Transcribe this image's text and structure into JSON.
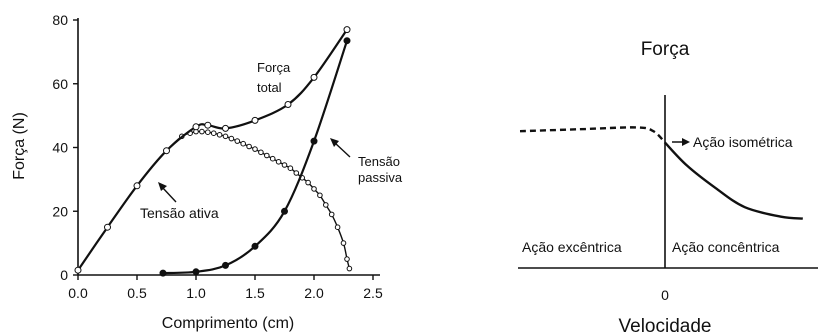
{
  "chart_data": [
    {
      "type": "line",
      "title": "",
      "xlabel": "Comprimento (cm)",
      "ylabel": "Força (N)",
      "xlim": [
        0,
        2.5
      ],
      "ylim": [
        0,
        80
      ],
      "x_ticks": [
        "0.0",
        "0.5",
        "1.0",
        "1.5",
        "2.0",
        "2.5"
      ],
      "y_ticks": [
        "0",
        "20",
        "40",
        "60",
        "80"
      ],
      "grid": false,
      "series": [
        {
          "marker": "open-circle",
          "label_lines": [
            "Tensão ativa"
          ],
          "points": [
            [
              0.0,
              1.5
            ],
            [
              0.25,
              15
            ],
            [
              0.5,
              28
            ],
            [
              0.75,
              39
            ],
            [
              0.88,
              43.5
            ],
            [
              0.95,
              44.5
            ],
            [
              1.0,
              45
            ],
            [
              1.05,
              45
            ],
            [
              1.1,
              44.8
            ],
            [
              1.15,
              44.5
            ],
            [
              1.2,
              44
            ],
            [
              1.25,
              43.5
            ],
            [
              1.3,
              42.8
            ],
            [
              1.35,
              42
            ],
            [
              1.4,
              41.2
            ],
            [
              1.45,
              40.3
            ],
            [
              1.5,
              39.5
            ],
            [
              1.55,
              38.5
            ],
            [
              1.6,
              37.5
            ],
            [
              1.65,
              36.5
            ],
            [
              1.7,
              35.5
            ],
            [
              1.75,
              34.5
            ],
            [
              1.8,
              33.5
            ],
            [
              1.85,
              32
            ],
            [
              1.9,
              30.5
            ],
            [
              1.95,
              29
            ],
            [
              2.0,
              27
            ],
            [
              2.05,
              25
            ],
            [
              2.1,
              22
            ],
            [
              2.15,
              19
            ],
            [
              2.2,
              15
            ],
            [
              2.25,
              10
            ],
            [
              2.28,
              5
            ],
            [
              2.3,
              2
            ]
          ]
        },
        {
          "marker": "filled-circle",
          "label_lines": [
            "Tensão",
            "passiva"
          ],
          "points": [
            [
              0.72,
              0.6
            ],
            [
              1.0,
              1
            ],
            [
              1.25,
              3
            ],
            [
              1.5,
              9
            ],
            [
              1.75,
              20
            ],
            [
              2.0,
              42
            ],
            [
              2.28,
              73.5
            ]
          ]
        },
        {
          "marker": "open-circle-sparse",
          "label_lines": [
            "Força",
            "total"
          ],
          "points": [
            [
              0.0,
              1.5
            ],
            [
              0.25,
              15
            ],
            [
              0.5,
              28
            ],
            [
              0.75,
              39
            ],
            [
              1.0,
              46.5
            ],
            [
              1.1,
              47
            ],
            [
              1.25,
              46
            ],
            [
              1.5,
              48.5
            ],
            [
              1.78,
              53.5
            ],
            [
              2.0,
              62
            ],
            [
              2.28,
              77
            ]
          ]
        }
      ]
    },
    {
      "type": "line",
      "title": "Força",
      "xlabel": "Velocidade",
      "x_tick": "0",
      "curve": {
        "eccentric_dashed": [
          [
            -1.0,
            0.72
          ],
          [
            -0.6,
            0.73
          ],
          [
            -0.2,
            0.74
          ],
          [
            -0.08,
            0.72
          ],
          [
            0.0,
            0.66
          ]
        ],
        "concentric_solid": [
          [
            0.0,
            0.66
          ],
          [
            0.15,
            0.54
          ],
          [
            0.35,
            0.42
          ],
          [
            0.55,
            0.32
          ],
          [
            0.8,
            0.27
          ],
          [
            0.95,
            0.26
          ]
        ]
      },
      "labels": {
        "isometric": "Ação isométrica",
        "eccentric": "Ação excêntrica",
        "concentric": "Ação concêntrica"
      }
    }
  ]
}
